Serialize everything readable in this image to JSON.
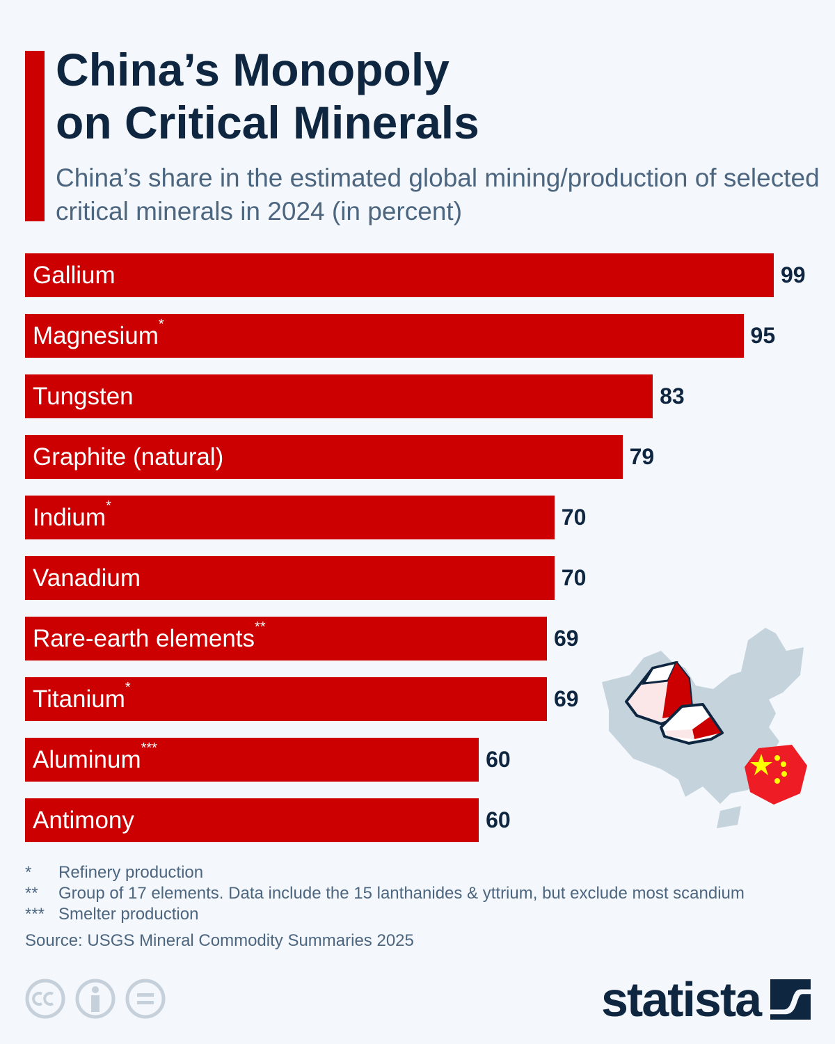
{
  "header": {
    "title_line1": "China’s Monopoly",
    "title_line2": "on Critical Minerals",
    "subtitle": "China’s share in the estimated global mining/production of selected critical minerals in 2024 (in percent)"
  },
  "chart_data": {
    "type": "bar",
    "orientation": "horizontal",
    "title": "China’s Monopoly on Critical Minerals",
    "subtitle": "China’s share in the estimated global mining/production of selected critical minerals in 2024 (in percent)",
    "categories": [
      "Gallium",
      "Magnesium",
      "Tungsten",
      "Graphite (natural)",
      "Indium",
      "Vanadium",
      "Rare-earth elements",
      "Titanium",
      "Aluminum",
      "Antimony"
    ],
    "footnote_marks": [
      "",
      "*",
      "",
      "",
      "*",
      "",
      "**",
      "*",
      "***",
      ""
    ],
    "values": [
      99,
      95,
      83,
      79,
      70,
      70,
      69,
      69,
      60,
      60
    ],
    "xlim": [
      0,
      100
    ],
    "grid": false,
    "bar_color": "#cc0000",
    "value_color": "#0f2641"
  },
  "footnotes": [
    {
      "mark": "*",
      "text": "Refinery production"
    },
    {
      "mark": "**",
      "text": "Group of 17 elements. Data include the 15 lanthanides & yttrium, but exclude most scandium"
    },
    {
      "mark": "***",
      "text": "Smelter production"
    }
  ],
  "source": "Source: USGS Mineral Commodity Summaries 2025",
  "branding": {
    "logo": "statista",
    "license_icons": [
      "cc-icon",
      "attribution-icon",
      "no-derivatives-icon"
    ]
  },
  "colors": {
    "background": "#f4f7fb",
    "accent": "#cc0000",
    "navy": "#0f2641",
    "map": "#c5d4dc"
  }
}
